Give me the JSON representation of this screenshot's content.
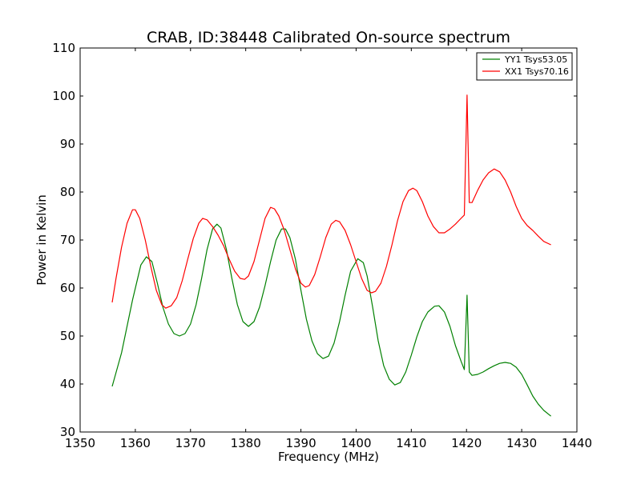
{
  "chart_data": {
    "type": "line",
    "title": "CRAB, ID:38448 Calibrated On-source spectrum",
    "xlabel": "Frequency (MHz)",
    "ylabel": "Power in Kelvin",
    "xlim": [
      1350,
      1440
    ],
    "ylim": [
      30,
      110
    ],
    "xticks": [
      1350,
      1360,
      1370,
      1380,
      1390,
      1400,
      1410,
      1420,
      1430,
      1440
    ],
    "yticks": [
      30,
      40,
      50,
      60,
      70,
      80,
      90,
      100,
      110
    ],
    "grid": false,
    "legend_position": "top-right",
    "series": [
      {
        "name": "YY1 Tsys53.05",
        "color": "#008000",
        "points": [
          [
            1355.8,
            39.5
          ],
          [
            1357.5,
            46.5
          ],
          [
            1359.5,
            57.5
          ],
          [
            1361.0,
            64.8
          ],
          [
            1362.0,
            66.5
          ],
          [
            1363.0,
            65.5
          ],
          [
            1364.0,
            61.0
          ],
          [
            1365.0,
            56.0
          ],
          [
            1366.0,
            52.5
          ],
          [
            1367.0,
            50.5
          ],
          [
            1368.0,
            50.0
          ],
          [
            1369.0,
            50.5
          ],
          [
            1370.0,
            52.5
          ],
          [
            1371.0,
            56.5
          ],
          [
            1372.0,
            62.0
          ],
          [
            1373.0,
            68.0
          ],
          [
            1374.0,
            72.3
          ],
          [
            1374.8,
            73.3
          ],
          [
            1375.5,
            72.5
          ],
          [
            1376.5,
            68.0
          ],
          [
            1377.5,
            62.0
          ],
          [
            1378.5,
            56.5
          ],
          [
            1379.5,
            53.0
          ],
          [
            1380.5,
            52.0
          ],
          [
            1381.5,
            53.0
          ],
          [
            1382.5,
            56.0
          ],
          [
            1383.5,
            60.5
          ],
          [
            1384.5,
            65.5
          ],
          [
            1385.5,
            70.0
          ],
          [
            1386.5,
            72.3
          ],
          [
            1387.2,
            72.3
          ],
          [
            1388.0,
            70.5
          ],
          [
            1389.0,
            66.0
          ],
          [
            1390.0,
            59.5
          ],
          [
            1391.0,
            53.5
          ],
          [
            1392.0,
            49.0
          ],
          [
            1393.0,
            46.3
          ],
          [
            1394.0,
            45.3
          ],
          [
            1395.0,
            45.8
          ],
          [
            1396.0,
            48.5
          ],
          [
            1397.0,
            53.0
          ],
          [
            1398.0,
            58.5
          ],
          [
            1399.0,
            63.5
          ],
          [
            1400.3,
            66.1
          ],
          [
            1401.3,
            65.3
          ],
          [
            1402.0,
            62.5
          ],
          [
            1403.0,
            56.0
          ],
          [
            1404.0,
            49.0
          ],
          [
            1405.0,
            43.8
          ],
          [
            1406.0,
            41.0
          ],
          [
            1407.0,
            39.8
          ],
          [
            1408.0,
            40.3
          ],
          [
            1409.0,
            42.5
          ],
          [
            1410.0,
            46.0
          ],
          [
            1411.0,
            49.8
          ],
          [
            1412.0,
            53.0
          ],
          [
            1413.0,
            55.0
          ],
          [
            1414.2,
            56.2
          ],
          [
            1415.0,
            56.3
          ],
          [
            1416.0,
            55.0
          ],
          [
            1417.0,
            52.0
          ],
          [
            1418.0,
            48.0
          ],
          [
            1419.0,
            44.8
          ],
          [
            1419.6,
            43.0
          ],
          [
            1420.1,
            58.5
          ],
          [
            1420.5,
            42.5
          ],
          [
            1421.0,
            41.8
          ],
          [
            1422.0,
            42.0
          ],
          [
            1423.0,
            42.5
          ],
          [
            1424.0,
            43.2
          ],
          [
            1425.0,
            43.8
          ],
          [
            1426.0,
            44.3
          ],
          [
            1427.0,
            44.5
          ],
          [
            1428.0,
            44.3
          ],
          [
            1429.0,
            43.5
          ],
          [
            1430.0,
            42.0
          ],
          [
            1431.0,
            39.8
          ],
          [
            1432.0,
            37.5
          ],
          [
            1433.0,
            35.8
          ],
          [
            1434.0,
            34.5
          ],
          [
            1435.3,
            33.3
          ]
        ]
      },
      {
        "name": "XX1 Tsys70.16",
        "color": "#ff0000",
        "points": [
          [
            1355.8,
            57.0
          ],
          [
            1356.5,
            62.0
          ],
          [
            1357.5,
            68.5
          ],
          [
            1358.5,
            73.5
          ],
          [
            1359.5,
            76.3
          ],
          [
            1360.0,
            76.3
          ],
          [
            1360.8,
            74.5
          ],
          [
            1361.8,
            70.0
          ],
          [
            1362.8,
            64.5
          ],
          [
            1363.8,
            59.5
          ],
          [
            1364.8,
            56.5
          ],
          [
            1365.5,
            55.8
          ],
          [
            1366.5,
            56.3
          ],
          [
            1367.5,
            58.0
          ],
          [
            1368.5,
            61.5
          ],
          [
            1369.5,
            66.0
          ],
          [
            1370.5,
            70.3
          ],
          [
            1371.5,
            73.5
          ],
          [
            1372.2,
            74.5
          ],
          [
            1373.0,
            74.2
          ],
          [
            1374.0,
            72.8
          ],
          [
            1375.0,
            71.0
          ],
          [
            1376.0,
            68.8
          ],
          [
            1377.0,
            66.0
          ],
          [
            1378.0,
            63.5
          ],
          [
            1379.0,
            62.0
          ],
          [
            1379.8,
            61.8
          ],
          [
            1380.5,
            62.5
          ],
          [
            1381.5,
            65.5
          ],
          [
            1382.5,
            70.0
          ],
          [
            1383.5,
            74.5
          ],
          [
            1384.5,
            76.8
          ],
          [
            1385.2,
            76.5
          ],
          [
            1386.0,
            75.0
          ],
          [
            1387.0,
            72.0
          ],
          [
            1388.0,
            68.0
          ],
          [
            1389.0,
            64.0
          ],
          [
            1390.0,
            61.0
          ],
          [
            1390.8,
            60.2
          ],
          [
            1391.5,
            60.5
          ],
          [
            1392.5,
            62.8
          ],
          [
            1393.5,
            66.5
          ],
          [
            1394.5,
            70.5
          ],
          [
            1395.5,
            73.3
          ],
          [
            1396.3,
            74.1
          ],
          [
            1397.0,
            73.8
          ],
          [
            1398.0,
            72.0
          ],
          [
            1399.0,
            69.0
          ],
          [
            1400.0,
            65.5
          ],
          [
            1401.0,
            62.0
          ],
          [
            1402.0,
            59.5
          ],
          [
            1402.8,
            59.0
          ],
          [
            1403.5,
            59.3
          ],
          [
            1404.5,
            61.0
          ],
          [
            1405.5,
            64.5
          ],
          [
            1406.5,
            69.0
          ],
          [
            1407.5,
            74.0
          ],
          [
            1408.5,
            78.0
          ],
          [
            1409.5,
            80.3
          ],
          [
            1410.3,
            80.8
          ],
          [
            1411.0,
            80.3
          ],
          [
            1412.0,
            78.0
          ],
          [
            1413.0,
            75.0
          ],
          [
            1414.0,
            72.8
          ],
          [
            1415.0,
            71.5
          ],
          [
            1416.0,
            71.5
          ],
          [
            1417.0,
            72.3
          ],
          [
            1418.0,
            73.3
          ],
          [
            1419.0,
            74.5
          ],
          [
            1419.6,
            75.2
          ],
          [
            1420.1,
            100.2
          ],
          [
            1420.5,
            77.8
          ],
          [
            1421.0,
            77.8
          ],
          [
            1422.0,
            80.3
          ],
          [
            1423.0,
            82.5
          ],
          [
            1424.0,
            84.0
          ],
          [
            1425.0,
            84.8
          ],
          [
            1426.0,
            84.2
          ],
          [
            1427.0,
            82.5
          ],
          [
            1428.0,
            80.0
          ],
          [
            1429.0,
            77.0
          ],
          [
            1430.0,
            74.5
          ],
          [
            1431.0,
            73.0
          ],
          [
            1432.0,
            72.0
          ],
          [
            1433.0,
            70.8
          ],
          [
            1434.0,
            69.7
          ],
          [
            1435.3,
            69.0
          ]
        ]
      }
    ]
  }
}
